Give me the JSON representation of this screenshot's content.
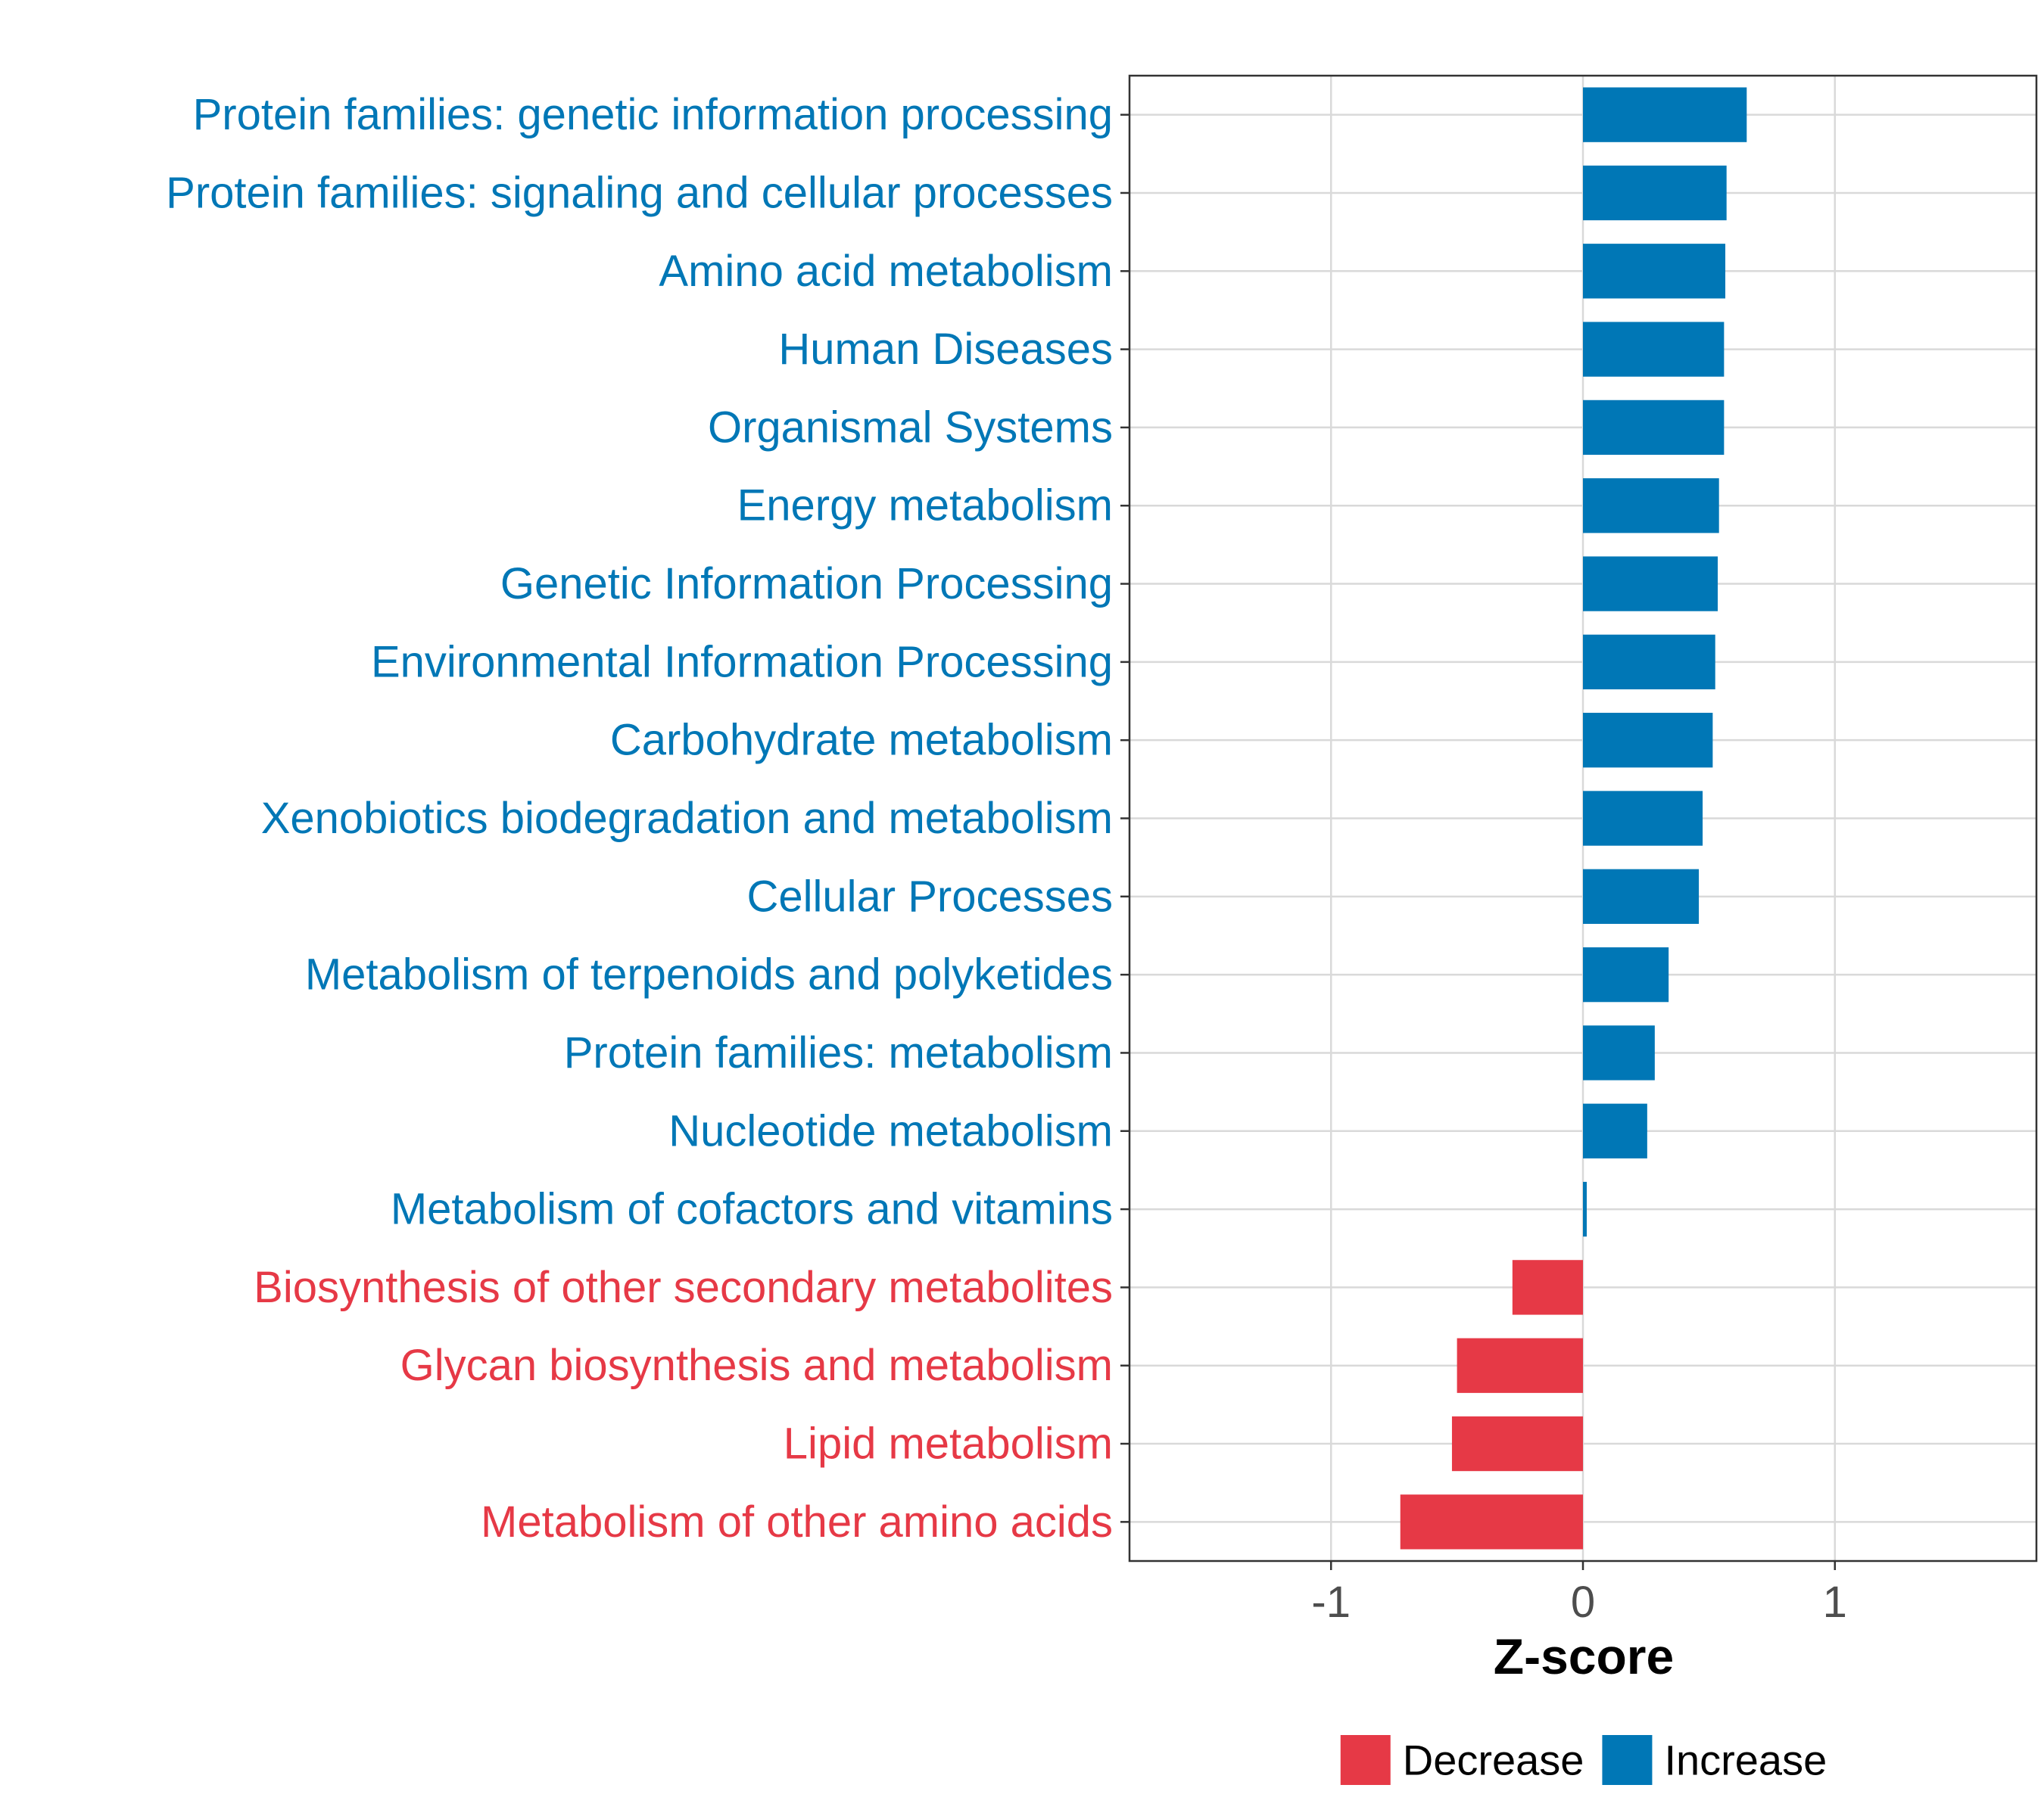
{
  "chart_data": {
    "type": "bar",
    "orientation": "horizontal",
    "xlabel": "Z-score",
    "xlim": [
      -1.8,
      1.8
    ],
    "xticks": [
      -1,
      0,
      1
    ],
    "xtick_labels": [
      "-1",
      "0",
      "1"
    ],
    "grid": true,
    "categories": [
      "Protein families: genetic information processing",
      "Protein families: signaling and cellular processes",
      "Amino acid metabolism",
      "Human Diseases",
      "Organismal Systems",
      "Energy metabolism",
      "Genetic Information Processing",
      "Environmental Information Processing",
      "Carbohydrate metabolism",
      "Xenobiotics biodegradation and metabolism",
      "Cellular Processes",
      "Metabolism of terpenoids and polyketides",
      "Protein families: metabolism",
      "Nucleotide metabolism",
      "Metabolism of cofactors and vitamins",
      "Biosynthesis of other secondary metabolites",
      "Glycan biosynthesis and metabolism",
      "Lipid metabolism",
      "Metabolism of other amino acids"
    ],
    "values": [
      0.65,
      0.57,
      0.565,
      0.56,
      0.56,
      0.54,
      0.535,
      0.525,
      0.515,
      0.475,
      0.46,
      0.34,
      0.285,
      0.255,
      0.015,
      -0.28,
      -0.5,
      -0.52,
      -0.725
    ],
    "groups": [
      "Increase",
      "Increase",
      "Increase",
      "Increase",
      "Increase",
      "Increase",
      "Increase",
      "Increase",
      "Increase",
      "Increase",
      "Increase",
      "Increase",
      "Increase",
      "Increase",
      "Increase",
      "Decrease",
      "Decrease",
      "Decrease",
      "Decrease"
    ],
    "legend": {
      "position": "bottom",
      "entries": [
        {
          "label": "Decrease",
          "color": "#e63946"
        },
        {
          "label": "Increase",
          "color": "#0077b6"
        }
      ]
    }
  }
}
